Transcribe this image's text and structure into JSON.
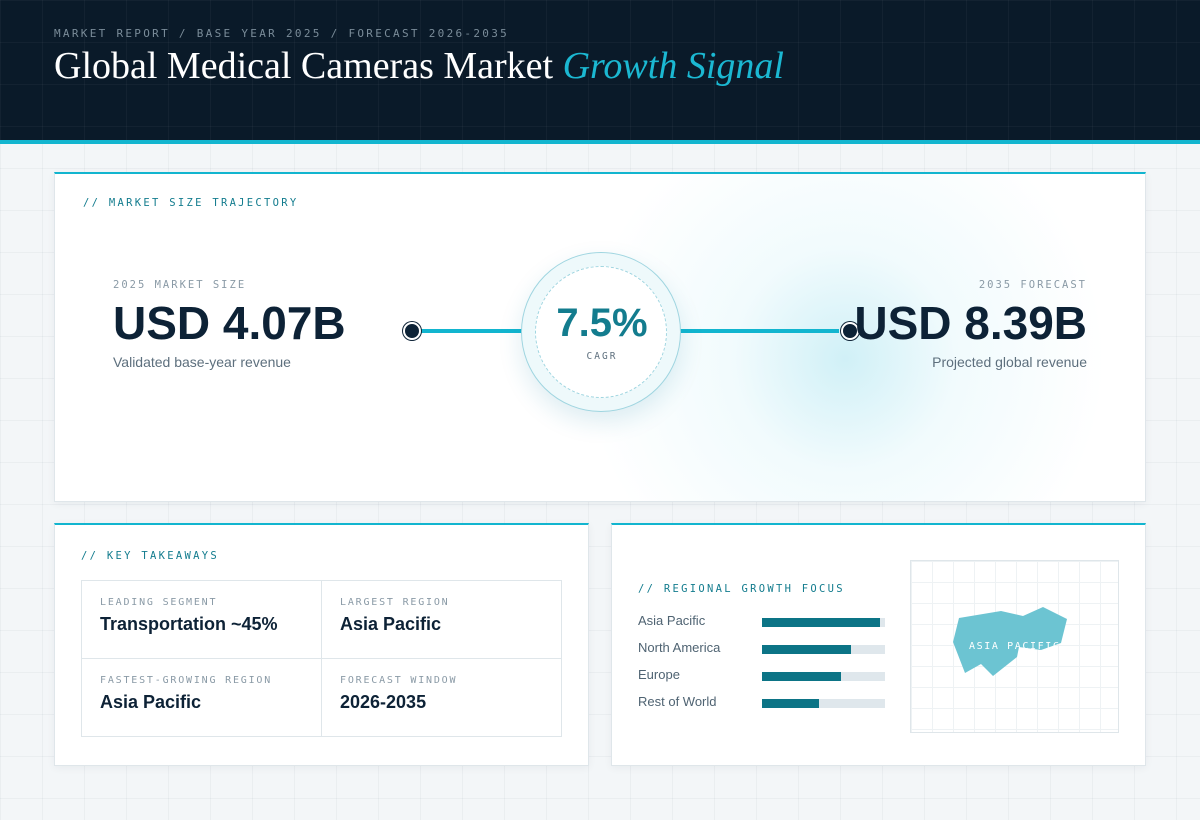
{
  "header": {
    "eyebrow": "MARKET REPORT / BASE YEAR 2025 / FORECAST 2026-2035",
    "title_main": "Global Medical Cameras Market",
    "title_accent": "Growth Signal"
  },
  "trajectory": {
    "label": "// MARKET SIZE TRAJECTORY",
    "base": {
      "label": "2025 MARKET SIZE",
      "value": "USD 4.07B",
      "sub": "Validated base-year revenue"
    },
    "forecast": {
      "label": "2035 FORECAST",
      "value": "USD 8.39B",
      "sub": "Projected global revenue"
    },
    "cagr": {
      "value": "7.5%",
      "label": "CAGR"
    }
  },
  "takeaways": {
    "label": "// KEY TAKEAWAYS",
    "items": [
      {
        "label": "LEADING SEGMENT",
        "value": "Transportation ~45%"
      },
      {
        "label": "LARGEST REGION",
        "value": "Asia Pacific"
      },
      {
        "label": "FASTEST-GROWING REGION",
        "value": "Asia Pacific"
      },
      {
        "label": "FORECAST WINDOW",
        "value": "2026-2035"
      }
    ]
  },
  "regional": {
    "label": "// REGIONAL GROWTH FOCUS",
    "map_label": "ASIA PACIFIC",
    "regions": [
      {
        "name": "Asia Pacific",
        "level": 0.96
      },
      {
        "name": "North America",
        "level": 0.72
      },
      {
        "name": "Europe",
        "level": 0.64
      },
      {
        "name": "Rest of World",
        "level": 0.46
      }
    ],
    "colors": {
      "bar": "#0c7486",
      "track": "#dfe7ec",
      "map": "#6cc4d2"
    }
  }
}
